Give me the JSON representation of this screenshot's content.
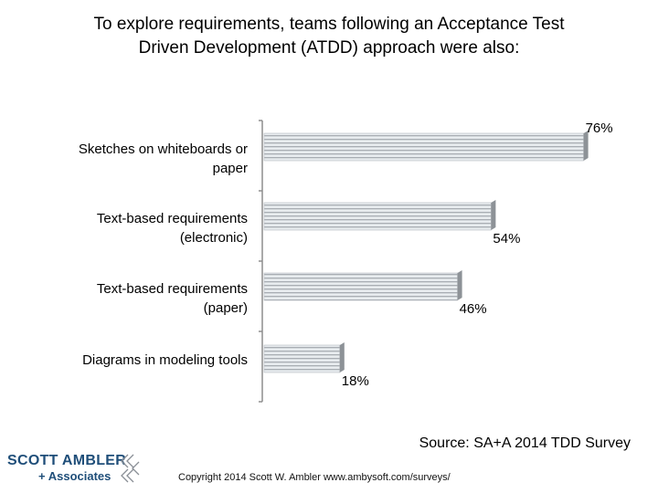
{
  "title_lines": [
    "To explore requirements, teams following an Acceptance Test",
    "Driven Development (ATDD) approach were also:"
  ],
  "source": "Source: SA+A 2014 TDD Survey",
  "copyright": "Copyright 2014 Scott W. Ambler www.ambysoft.com/surveys/",
  "logo": {
    "line1": "SCOTT AMBLER",
    "line2": "+ Associates"
  },
  "chart_data": {
    "type": "bar",
    "orientation": "horizontal",
    "categories": [
      [
        "Sketches on whiteboards or",
        "paper"
      ],
      [
        "Text-based requirements",
        "(electronic)"
      ],
      [
        "Text-based requirements",
        "(paper)"
      ],
      [
        "Diagrams in modeling tools"
      ]
    ],
    "values": [
      76,
      54,
      46,
      18
    ],
    "value_labels": [
      "76%",
      "54%",
      "46%",
      "18%"
    ],
    "xlim": [
      0,
      100
    ],
    "grid": false,
    "bar_color": "#a8adb3",
    "bar_stripe_color": "#e8ecef"
  }
}
